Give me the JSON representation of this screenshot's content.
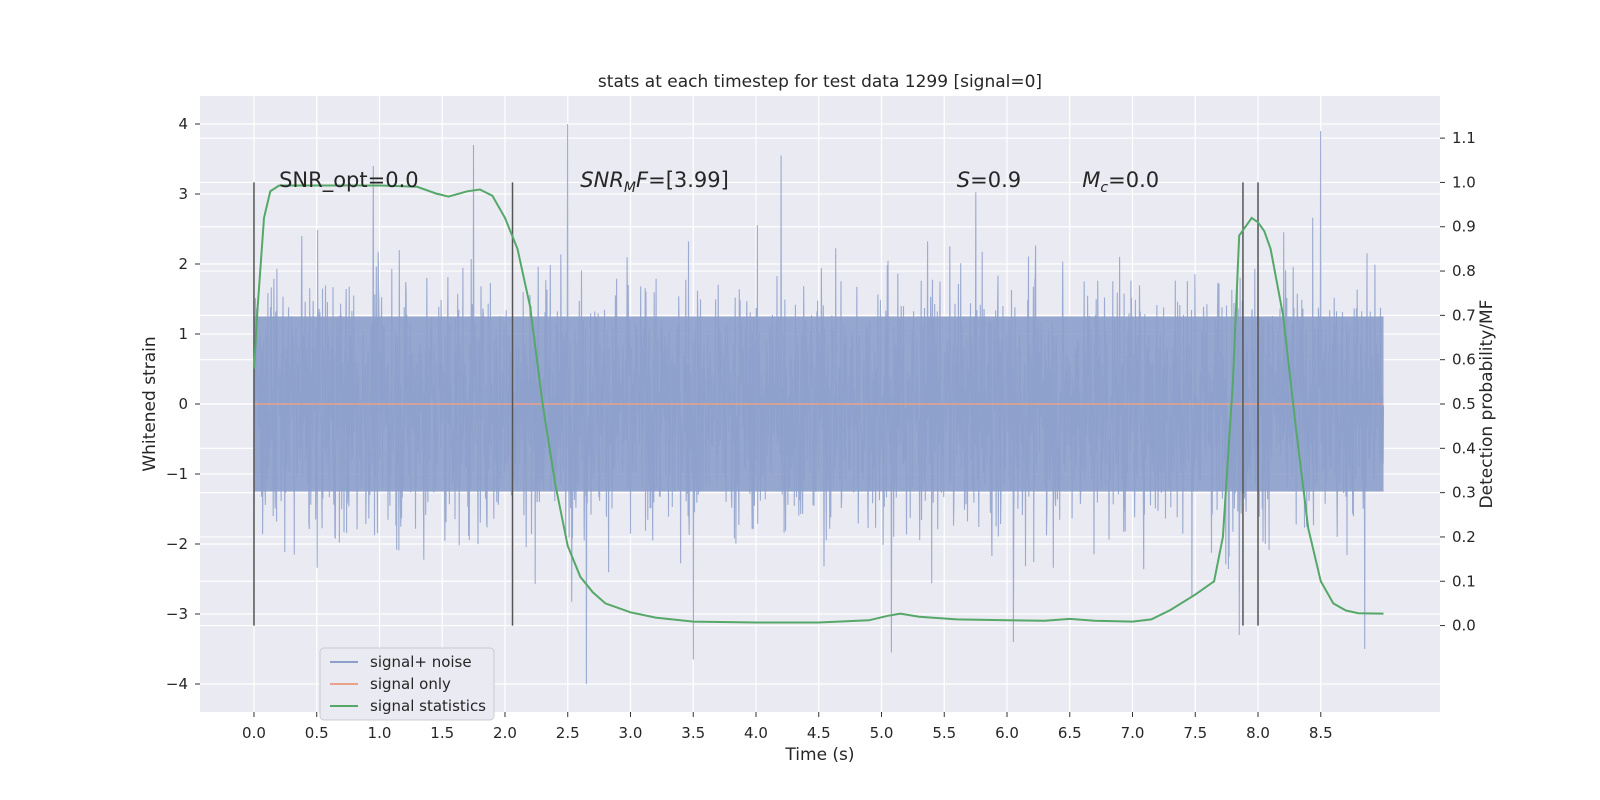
{
  "chart_data": {
    "type": "line",
    "title": "stats at each timestep for test data 1299 [signal=0]",
    "xlabel": "Time (s)",
    "ylabel_left": "Whitened strain",
    "ylabel_right": "Detection probability/MF",
    "xlim": [
      -0.43,
      9.45
    ],
    "ylim_left": [
      -4.4,
      4.4
    ],
    "ylim_right": [
      -0.195,
      1.195
    ],
    "x_ticks": [
      0.0,
      0.5,
      1.0,
      1.5,
      2.0,
      2.5,
      3.0,
      3.5,
      4.0,
      4.5,
      5.0,
      5.5,
      6.0,
      6.5,
      7.0,
      7.5,
      8.0,
      8.5
    ],
    "x_tick_labels": [
      "0.0",
      "0.5",
      "1.0",
      "1.5",
      "2.0",
      "2.5",
      "3.0",
      "3.5",
      "4.0",
      "4.5",
      "5.0",
      "5.5",
      "6.0",
      "6.5",
      "7.0",
      "7.5",
      "8.0",
      "8.5"
    ],
    "left_ticks": [
      -4,
      -3,
      -2,
      -1,
      0,
      1,
      2,
      3,
      4
    ],
    "left_tick_labels": [
      "−4",
      "−3",
      "−2",
      "−1",
      "0",
      "1",
      "2",
      "3",
      "4"
    ],
    "right_ticks": [
      0.0,
      0.1,
      0.2,
      0.3,
      0.4,
      0.5,
      0.6,
      0.7,
      0.8,
      0.9,
      1.0,
      1.1
    ],
    "right_tick_labels": [
      "0.0",
      "0.1",
      "0.2",
      "0.3",
      "0.4",
      "0.5",
      "0.6",
      "0.7",
      "0.8",
      "0.9",
      "1.0",
      "1.1"
    ],
    "grid": true,
    "legend": {
      "position": "lower-left",
      "items": [
        {
          "label": "signal+ noise",
          "color": "#8da0cb"
        },
        {
          "label": "signal only",
          "color": "#e8a28a"
        },
        {
          "label": "signal statistics",
          "color": "#55a868"
        }
      ]
    },
    "series": [
      {
        "name": "signal+ noise",
        "axis": "left",
        "description_type": "noise",
        "x_range": [
          0.0,
          9.0
        ],
        "band": 1.25,
        "peaks": [
          {
            "x": 0.0,
            "y": -3.1
          },
          {
            "x": 0.38,
            "y": 2.4
          },
          {
            "x": 0.95,
            "y": 3.4
          },
          {
            "x": 1.75,
            "y": 3.7
          },
          {
            "x": 2.5,
            "y": 4.0
          },
          {
            "x": 2.65,
            "y": -4.0
          },
          {
            "x": 3.5,
            "y": -3.65
          },
          {
            "x": 4.2,
            "y": 3.55
          },
          {
            "x": 5.08,
            "y": -3.55
          },
          {
            "x": 6.05,
            "y": -3.4
          },
          {
            "x": 7.85,
            "y": -3.3
          },
          {
            "x": 8.5,
            "y": 3.9
          },
          {
            "x": 8.85,
            "y": -3.5
          }
        ],
        "color": "#8da0cb"
      },
      {
        "name": "signal only",
        "axis": "left",
        "x": [
          0.0,
          9.0
        ],
        "y": [
          0.0,
          0.0
        ],
        "color": "#e8a28a"
      },
      {
        "name": "signal statistics",
        "axis": "right",
        "x": [
          0.0,
          0.03,
          0.08,
          0.13,
          0.2,
          0.3,
          0.5,
          1.0,
          1.3,
          1.45,
          1.55,
          1.7,
          1.8,
          1.9,
          2.0,
          2.1,
          2.2,
          2.3,
          2.4,
          2.5,
          2.6,
          2.7,
          2.8,
          3.0,
          3.2,
          3.5,
          4.0,
          4.5,
          4.9,
          5.05,
          5.15,
          5.3,
          5.6,
          6.0,
          6.3,
          6.5,
          6.7,
          7.0,
          7.15,
          7.3,
          7.5,
          7.65,
          7.72,
          7.8,
          7.85,
          7.95,
          8.0,
          8.05,
          8.1,
          8.2,
          8.3,
          8.4,
          8.5,
          8.6,
          8.7,
          8.8,
          9.0
        ],
        "y": [
          0.58,
          0.72,
          0.92,
          0.98,
          0.993,
          0.993,
          0.993,
          0.993,
          0.99,
          0.975,
          0.968,
          0.98,
          0.984,
          0.97,
          0.92,
          0.85,
          0.72,
          0.5,
          0.32,
          0.18,
          0.11,
          0.075,
          0.05,
          0.03,
          0.018,
          0.009,
          0.007,
          0.007,
          0.012,
          0.022,
          0.027,
          0.02,
          0.014,
          0.012,
          0.011,
          0.015,
          0.011,
          0.009,
          0.014,
          0.035,
          0.07,
          0.1,
          0.2,
          0.55,
          0.88,
          0.92,
          0.91,
          0.89,
          0.85,
          0.7,
          0.45,
          0.22,
          0.1,
          0.05,
          0.034,
          0.028,
          0.027
        ],
        "color": "#55a868"
      }
    ],
    "vertical_markers_x": [
      0.0,
      2.06,
      7.88,
      8.0
    ],
    "annotations": [
      {
        "prefix": "SNR_opt",
        "sub": "",
        "suffix": "=0.0",
        "italic": false,
        "x": 0.2,
        "y": 3.1
      },
      {
        "prefix": "SNR",
        "sub": "M",
        "suffix": "F=[3.99]",
        "italic": true,
        "x": 2.6,
        "y": 3.1
      },
      {
        "prefix": "S",
        "sub": "",
        "suffix": "=0.9",
        "italic": true,
        "x": 5.6,
        "y": 3.1
      },
      {
        "prefix": "M",
        "sub": "c",
        "suffix": "=0.0",
        "italic": true,
        "x": 6.6,
        "y": 3.1
      }
    ]
  }
}
